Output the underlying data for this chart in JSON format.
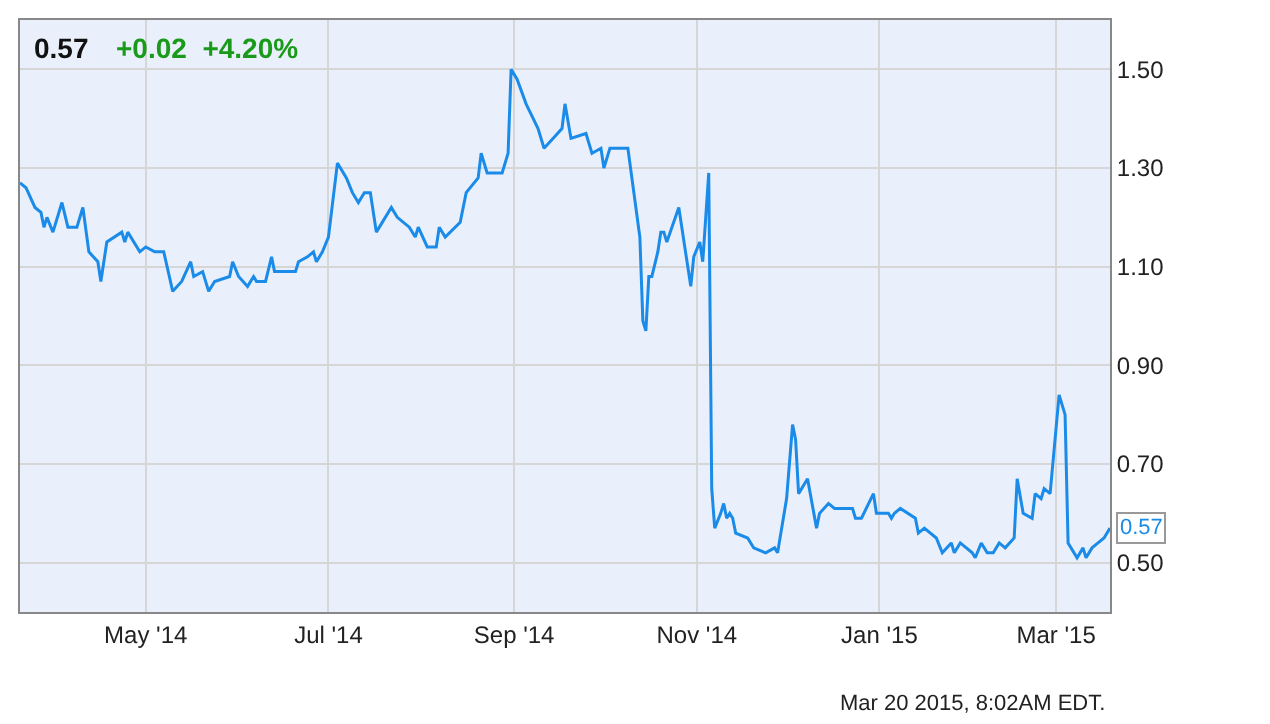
{
  "chart_data": {
    "type": "line",
    "title": "0.57",
    "subtitle": "+0.02  +4.20%",
    "x": [
      "2014-03-20",
      "2014-03-22",
      "2014-03-25",
      "2014-03-27",
      "2014-03-28",
      "2014-03-29",
      "2014-03-31",
      "2014-04-03",
      "2014-04-05",
      "2014-04-08",
      "2014-04-10",
      "2014-04-12",
      "2014-04-15",
      "2014-04-16",
      "2014-04-18",
      "2014-04-23",
      "2014-04-24",
      "2014-04-25",
      "2014-04-29",
      "2014-05-01",
      "2014-05-04",
      "2014-05-07",
      "2014-05-10",
      "2014-05-13",
      "2014-05-16",
      "2014-05-17",
      "2014-05-20",
      "2014-05-22",
      "2014-05-24",
      "2014-05-29",
      "2014-05-30",
      "2014-06-01",
      "2014-06-04",
      "2014-06-06",
      "2014-06-07",
      "2014-06-10",
      "2014-06-12",
      "2014-06-13",
      "2014-06-20",
      "2014-06-21",
      "2014-06-24",
      "2014-06-26",
      "2014-06-27",
      "2014-06-29",
      "2014-07-01",
      "2014-07-04",
      "2014-07-07",
      "2014-07-09",
      "2014-07-11",
      "2014-07-13",
      "2014-07-15",
      "2014-07-17",
      "2014-07-22",
      "2014-07-24",
      "2014-07-28",
      "2014-07-30",
      "2014-07-31",
      "2014-08-03",
      "2014-08-06",
      "2014-08-07",
      "2014-08-09",
      "2014-08-14",
      "2014-08-16",
      "2014-08-20",
      "2014-08-21",
      "2014-08-23",
      "2014-08-28",
      "2014-08-30",
      "2014-08-31",
      "2014-09-02",
      "2014-09-05",
      "2014-09-09",
      "2014-09-11",
      "2014-09-14",
      "2014-09-17",
      "2014-09-18",
      "2014-09-20",
      "2014-09-25",
      "2014-09-27",
      "2014-09-30",
      "2014-10-01",
      "2014-10-03",
      "2014-10-09",
      "2014-10-13",
      "2014-10-14",
      "2014-10-15",
      "2014-10-16",
      "2014-10-17",
      "2014-10-19",
      "2014-10-20",
      "2014-10-21",
      "2014-10-22",
      "2014-10-26",
      "2014-10-30",
      "2014-10-31",
      "2014-11-02",
      "2014-11-03",
      "2014-11-05",
      "2014-11-06",
      "2014-11-07",
      "2014-11-09",
      "2014-11-10",
      "2014-11-11",
      "2014-11-12",
      "2014-11-13",
      "2014-11-14",
      "2014-11-18",
      "2014-11-20",
      "2014-11-24",
      "2014-11-27",
      "2014-11-28",
      "2014-12-01",
      "2014-12-03",
      "2014-12-04",
      "2014-12-05",
      "2014-12-07",
      "2014-12-08",
      "2014-12-11",
      "2014-12-12",
      "2014-12-15",
      "2014-12-17",
      "2014-12-23",
      "2014-12-24",
      "2014-12-26",
      "2014-12-30",
      "2014-12-31",
      "2015-01-04",
      "2015-01-05",
      "2015-01-06",
      "2015-01-08",
      "2015-01-13",
      "2015-01-14",
      "2015-01-16",
      "2015-01-20",
      "2015-01-22",
      "2015-01-25",
      "2015-01-26",
      "2015-01-28",
      "2015-02-01",
      "2015-02-02",
      "2015-02-04",
      "2015-02-06",
      "2015-02-08",
      "2015-02-10",
      "2015-02-12",
      "2015-02-15",
      "2015-02-16",
      "2015-02-18",
      "2015-02-21",
      "2015-02-22",
      "2015-02-24",
      "2015-02-25",
      "2015-02-27",
      "2015-03-02",
      "2015-03-04",
      "2015-03-05",
      "2015-03-08",
      "2015-03-10",
      "2015-03-11",
      "2015-03-13",
      "2015-03-15",
      "2015-03-17",
      "2015-03-19"
    ],
    "series": [
      {
        "color": "#1a8be8",
        "values": [
          1.27,
          1.26,
          1.22,
          1.21,
          1.18,
          1.2,
          1.17,
          1.23,
          1.18,
          1.18,
          1.22,
          1.13,
          1.11,
          1.07,
          1.15,
          1.17,
          1.15,
          1.17,
          1.13,
          1.14,
          1.13,
          1.13,
          1.05,
          1.07,
          1.11,
          1.08,
          1.09,
          1.05,
          1.07,
          1.08,
          1.11,
          1.08,
          1.06,
          1.08,
          1.07,
          1.07,
          1.12,
          1.09,
          1.09,
          1.11,
          1.12,
          1.13,
          1.11,
          1.13,
          1.16,
          1.31,
          1.28,
          1.25,
          1.23,
          1.25,
          1.25,
          1.17,
          1.22,
          1.2,
          1.18,
          1.16,
          1.18,
          1.14,
          1.14,
          1.18,
          1.16,
          1.19,
          1.25,
          1.28,
          1.33,
          1.29,
          1.29,
          1.33,
          1.5,
          1.48,
          1.43,
          1.38,
          1.34,
          1.36,
          1.38,
          1.43,
          1.36,
          1.37,
          1.33,
          1.34,
          1.3,
          1.34,
          1.34,
          1.16,
          0.99,
          0.97,
          1.08,
          1.08,
          1.13,
          1.17,
          1.17,
          1.15,
          1.22,
          1.06,
          1.12,
          1.15,
          1.11,
          1.29,
          0.65,
          0.57,
          0.6,
          0.62,
          0.59,
          0.6,
          0.59,
          0.56,
          0.55,
          0.53,
          0.52,
          0.53,
          0.52,
          0.63,
          0.78,
          0.75,
          0.64,
          0.66,
          0.67,
          0.57,
          0.6,
          0.62,
          0.61,
          0.61,
          0.59,
          0.59,
          0.64,
          0.6,
          0.6,
          0.59,
          0.6,
          0.61,
          0.59,
          0.56,
          0.57,
          0.55,
          0.52,
          0.54,
          0.52,
          0.54,
          0.52,
          0.51,
          0.54,
          0.52,
          0.52,
          0.54,
          0.53,
          0.55,
          0.67,
          0.6,
          0.59,
          0.64,
          0.63,
          0.65,
          0.64,
          0.84,
          0.8,
          0.54,
          0.51,
          0.53,
          0.51,
          0.53,
          0.54,
          0.55,
          0.57
        ]
      }
    ],
    "xlim": [
      "2014-03-20",
      "2015-03-19"
    ],
    "xticks": [
      {
        "value": "2014-05-01",
        "label": "May '14"
      },
      {
        "value": "2014-07-01",
        "label": "Jul '14"
      },
      {
        "value": "2014-09-01",
        "label": "Sep '14"
      },
      {
        "value": "2014-11-01",
        "label": "Nov '14"
      },
      {
        "value": "2015-01-01",
        "label": "Jan '15"
      },
      {
        "value": "2015-03-01",
        "label": "Mar '15"
      }
    ],
    "ylim": [
      0.4,
      1.6
    ],
    "yticks": [
      {
        "value": 0.5,
        "label": "0.50"
      },
      {
        "value": 0.7,
        "label": "0.70"
      },
      {
        "value": 0.9,
        "label": "0.90"
      },
      {
        "value": 1.1,
        "label": "1.10"
      },
      {
        "value": 1.3,
        "label": "1.30"
      },
      {
        "value": 1.5,
        "label": "1.50"
      }
    ],
    "grid": true,
    "marker": "none",
    "line_style": "solid",
    "annotations": [
      {
        "text": "0.57",
        "x": "2015-03-19",
        "y": 0.57
      },
      "Mar 20 2015, 8:02AM EDT."
    ]
  }
}
